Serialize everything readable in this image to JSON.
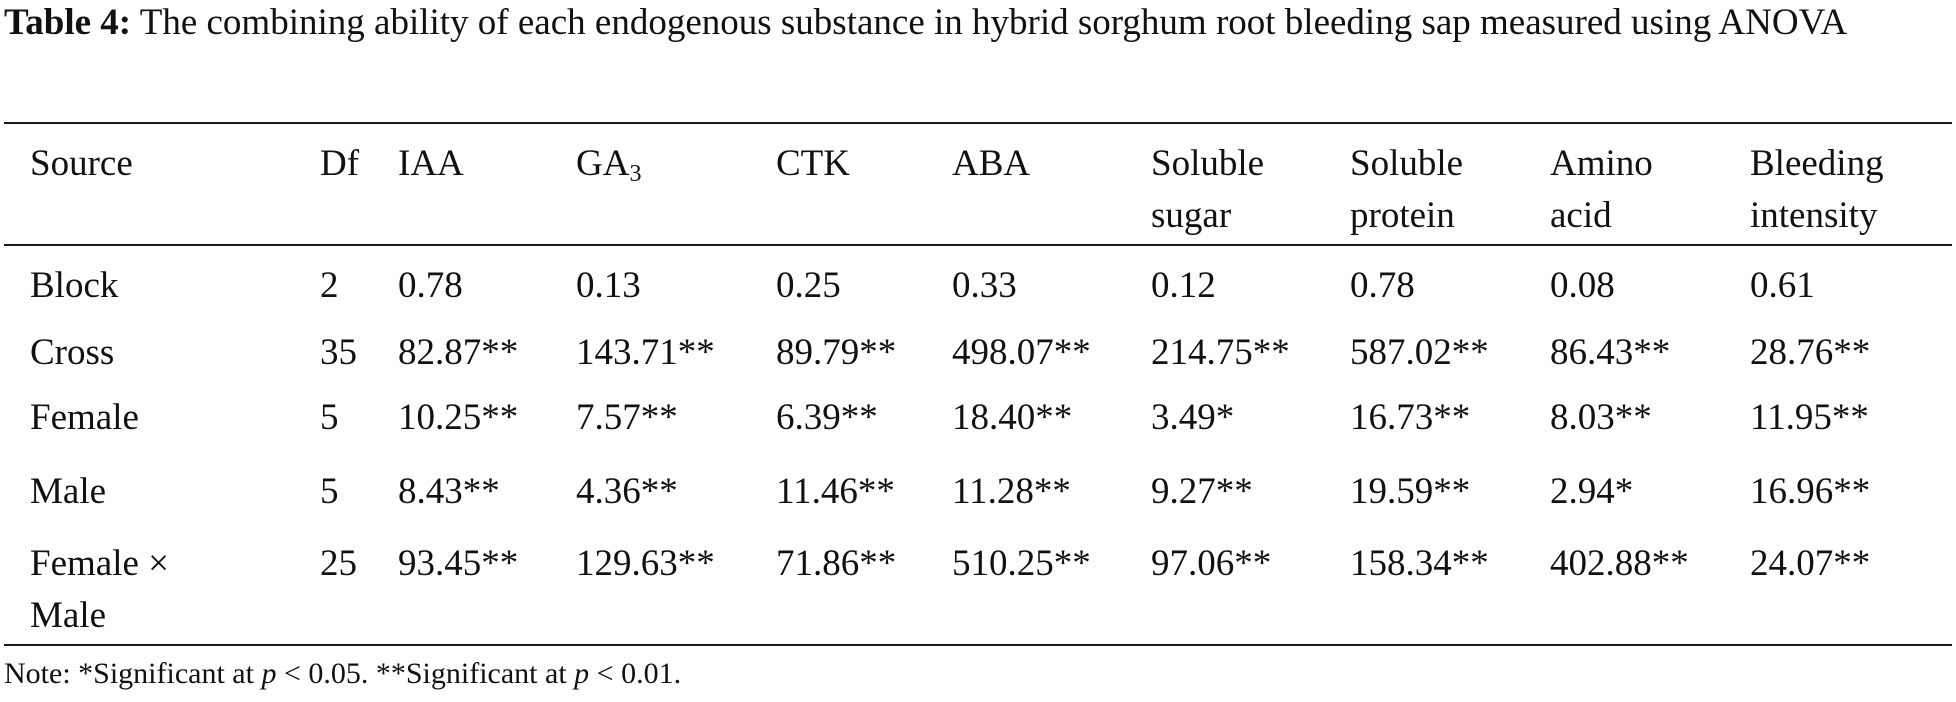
{
  "caption": {
    "label": "Table 4:",
    "text": "The combining ability of each endogenous substance in hybrid sorghum root bleeding sap measured using ANOVA"
  },
  "table": {
    "headers": [
      [
        "Source"
      ],
      [
        "Df"
      ],
      [
        "IAA"
      ],
      [
        "GA",
        "3"
      ],
      [
        "CTK"
      ],
      [
        "ABA"
      ],
      [
        "Soluble",
        "sugar"
      ],
      [
        "Soluble",
        "protein"
      ],
      [
        "Amino",
        "acid"
      ],
      [
        "Bleeding",
        "intensity"
      ]
    ],
    "rows": [
      {
        "source": [
          "Block"
        ],
        "cells": [
          "2",
          "0.78",
          "0.13",
          "0.25",
          "0.33",
          "0.12",
          "0.78",
          "0.08",
          "0.61"
        ]
      },
      {
        "source": [
          "Cross"
        ],
        "cells": [
          "35",
          "82.87**",
          "143.71**",
          "89.79**",
          "498.07**",
          "214.75**",
          "587.02**",
          "86.43**",
          "28.76**"
        ]
      },
      {
        "source": [
          "Female"
        ],
        "cells": [
          "5",
          "10.25**",
          "7.57**",
          "6.39**",
          "18.40**",
          "3.49*",
          "16.73**",
          "8.03**",
          "11.95**"
        ]
      },
      {
        "source": [
          "Male"
        ],
        "cells": [
          "5",
          "8.43**",
          "4.36**",
          "11.46**",
          "11.28**",
          "9.27**",
          "19.59**",
          "2.94*",
          "16.96**"
        ]
      },
      {
        "source": [
          "Female ×",
          "Male"
        ],
        "cells": [
          "25",
          "93.45**",
          "129.63**",
          "71.86**",
          "510.25**",
          "97.06**",
          "158.34**",
          "402.88**",
          "24.07**"
        ]
      }
    ]
  },
  "note": {
    "part1": "Note: *Significant at ",
    "p1": "p",
    "part2": " < 0.05. **Significant at ",
    "p2": "p",
    "part3": " < 0.01."
  }
}
